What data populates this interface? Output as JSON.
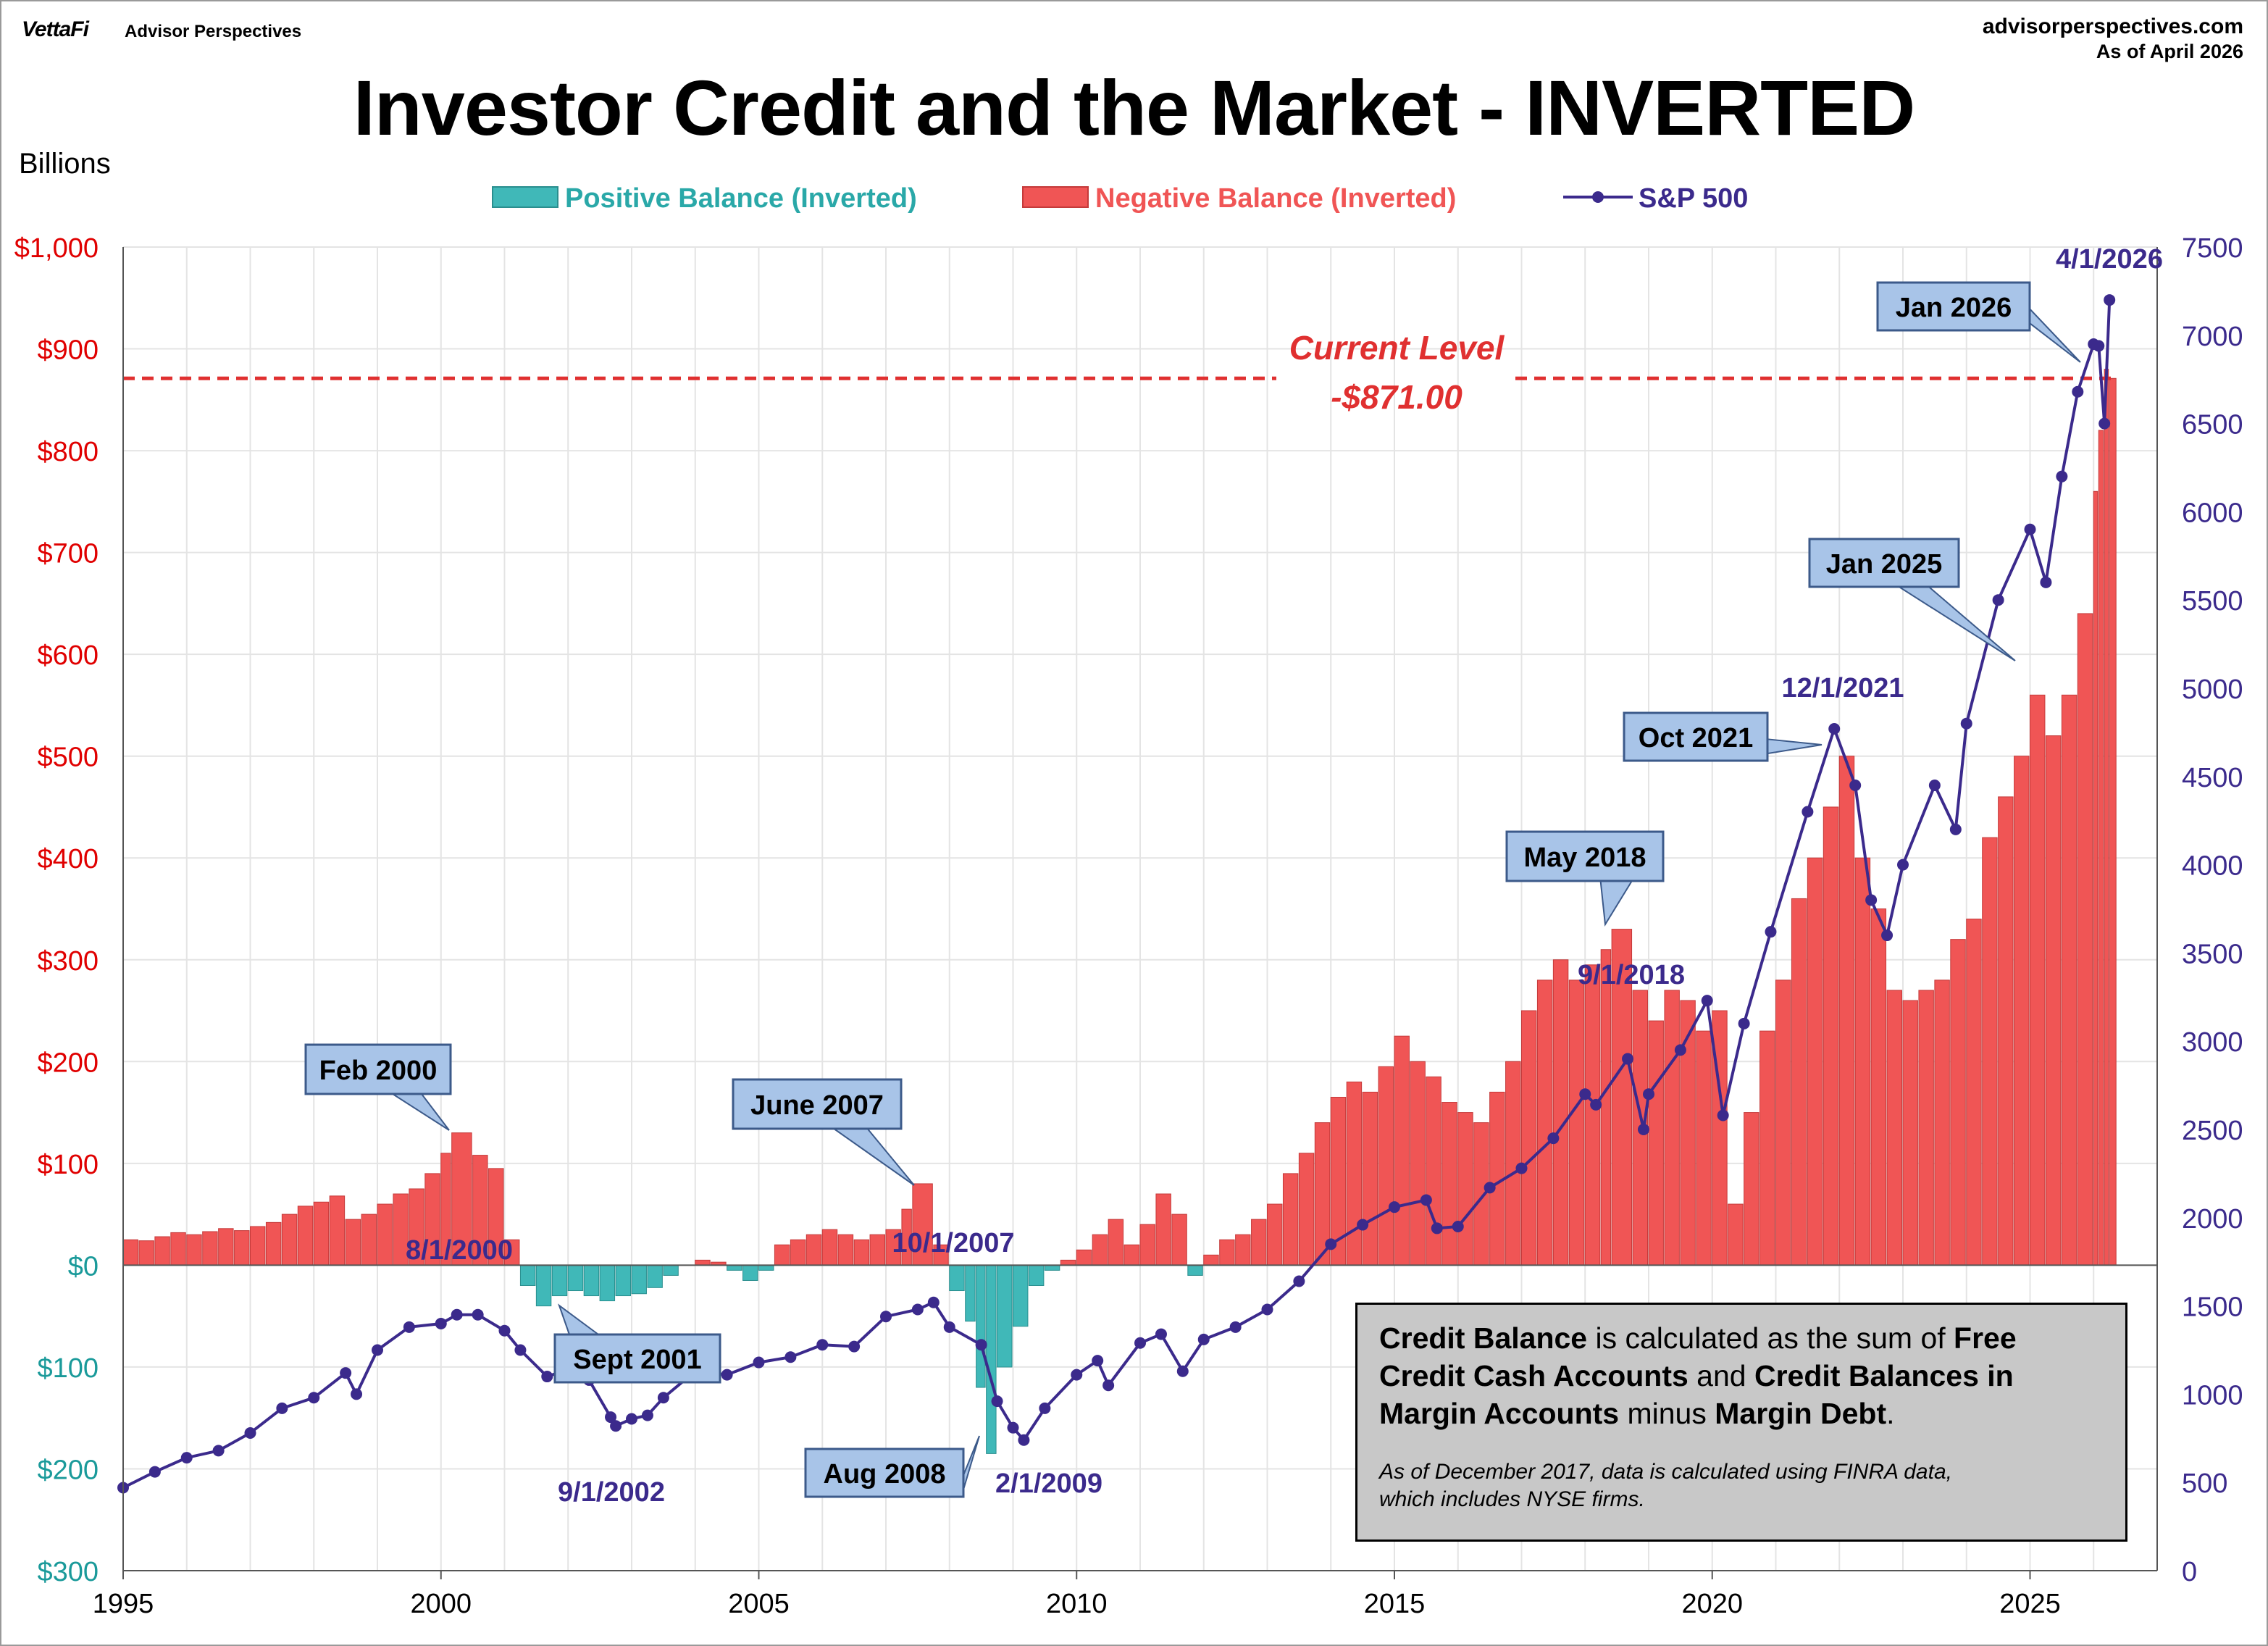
{
  "header": {
    "brand": "VettaFi",
    "brand_sub": "Advisor Perspectives",
    "site": "advisorperspectives.com",
    "as_of": "As of April 2026"
  },
  "colors": {
    "positive": "#40b8b8",
    "negative": "#f05555",
    "sp500": "#3b2a8c",
    "left_axis": "#e00000",
    "left_axis_zero_below": "#1a9a9a",
    "grid": "#e4e4e4",
    "current_level": "#e03030",
    "callout_fill": "#a8c4e8",
    "callout_border": "#3c5a8a"
  },
  "note": {
    "parts": [
      {
        "text": "Credit Balance",
        "bold": true
      },
      {
        "text": " is calculated as the sum of ",
        "bold": false
      },
      {
        "text": "Free Credit Cash Accounts",
        "bold": true
      },
      {
        "text": " and ",
        "bold": false
      },
      {
        "text": "Credit Balances in Margin Accounts",
        "bold": true
      },
      {
        "text": " minus ",
        "bold": false
      },
      {
        "text": "Margin Debt",
        "bold": true
      },
      {
        "text": ".",
        "bold": false
      }
    ],
    "footnote": "As of December 2017, data is calculated using FINRA data,\n which includes NYSE firms."
  },
  "chart_data": {
    "type": "bar+line",
    "title": "Investor Credit and the Market - INVERTED",
    "left_axis": {
      "label": "Billions",
      "range": [
        -300,
        1000
      ],
      "ticks": [
        1000,
        900,
        800,
        700,
        600,
        500,
        400,
        300,
        200,
        100,
        0,
        -100,
        -200,
        -300
      ],
      "tick_labels": [
        "$1,000",
        "$900",
        "$800",
        "$700",
        "$600",
        "$500",
        "$400",
        "$300",
        "$200",
        "$100",
        "$0",
        "$100",
        "$200",
        "$300"
      ]
    },
    "right_axis": {
      "range": [
        0,
        7500
      ],
      "ticks": [
        7500,
        7000,
        6500,
        6000,
        5500,
        5000,
        4500,
        4000,
        3500,
        3000,
        2500,
        2000,
        1500,
        1000,
        500,
        0
      ],
      "tick_labels": [
        "7500",
        "7000",
        "6500",
        "6000",
        "5500",
        "5000",
        "4500",
        "4000",
        "3500",
        "3000",
        "2500",
        "2000",
        "1500",
        "1000",
        "500",
        "0"
      ]
    },
    "x_axis": {
      "range": [
        1995,
        2027
      ],
      "ticks": [
        1995,
        2000,
        2005,
        2010,
        2015,
        2020,
        2025
      ],
      "tick_labels": [
        "1995",
        "2000",
        "2005",
        "2010",
        "2015",
        "2020",
        "2025"
      ]
    },
    "grid": true,
    "legend": {
      "placement": "top",
      "entries": [
        "Positive Balance (Inverted)",
        "Negative Balance (Inverted)",
        "S&P 500"
      ]
    },
    "series": [
      {
        "name": "Credit Balance (Inverted)",
        "axis": "left",
        "x": [
          1995.0,
          1995.25,
          1995.5,
          1995.75,
          1996.0,
          1996.25,
          1996.5,
          1996.75,
          1997.0,
          1997.25,
          1997.5,
          1997.75,
          1998.0,
          1998.25,
          1998.5,
          1998.75,
          1999.0,
          1999.25,
          1999.5,
          1999.75,
          2000.0,
          2000.17,
          2000.5,
          2000.75,
          2001.0,
          2001.25,
          2001.5,
          2001.75,
          2002.0,
          2002.25,
          2002.5,
          2002.75,
          2003.0,
          2003.25,
          2003.5,
          2003.75,
          2004.0,
          2004.25,
          2004.5,
          2004.75,
          2005.0,
          2005.25,
          2005.5,
          2005.75,
          2006.0,
          2006.25,
          2006.5,
          2006.75,
          2007.0,
          2007.25,
          2007.42,
          2007.75,
          2008.0,
          2008.25,
          2008.42,
          2008.58,
          2008.75,
          2009.0,
          2009.25,
          2009.5,
          2009.75,
          2010.0,
          2010.25,
          2010.5,
          2010.75,
          2011.0,
          2011.25,
          2011.5,
          2011.75,
          2012.0,
          2012.25,
          2012.5,
          2012.75,
          2013.0,
          2013.25,
          2013.5,
          2013.75,
          2014.0,
          2014.25,
          2014.5,
          2014.75,
          2015.0,
          2015.25,
          2015.5,
          2015.75,
          2016.0,
          2016.25,
          2016.5,
          2016.75,
          2017.0,
          2017.25,
          2017.5,
          2017.75,
          2018.0,
          2018.25,
          2018.42,
          2018.75,
          2019.0,
          2019.25,
          2019.5,
          2019.75,
          2020.0,
          2020.25,
          2020.5,
          2020.75,
          2021.0,
          2021.25,
          2021.5,
          2021.75,
          2022.0,
          2022.25,
          2022.5,
          2022.75,
          2023.0,
          2023.25,
          2023.5,
          2023.75,
          2024.0,
          2024.25,
          2024.5,
          2024.75,
          2025.0,
          2025.25,
          2025.5,
          2025.75,
          2026.0,
          2026.08,
          2026.17,
          2026.25
        ],
        "values": [
          25,
          24,
          28,
          32,
          30,
          33,
          36,
          34,
          38,
          42,
          50,
          58,
          62,
          68,
          45,
          50,
          60,
          70,
          75,
          90,
          110,
          130,
          108,
          95,
          25,
          -20,
          -40,
          -30,
          -25,
          -30,
          -35,
          -30,
          -28,
          -22,
          -10,
          0,
          5,
          3,
          -5,
          -15,
          -5,
          20,
          25,
          30,
          35,
          30,
          25,
          30,
          35,
          55,
          80,
          20,
          -25,
          -55,
          -120,
          -185,
          -100,
          -60,
          -20,
          -5,
          5,
          15,
          30,
          45,
          20,
          40,
          70,
          50,
          -10,
          10,
          25,
          30,
          45,
          60,
          90,
          110,
          140,
          165,
          180,
          170,
          195,
          225,
          200,
          185,
          160,
          150,
          140,
          170,
          200,
          250,
          280,
          300,
          280,
          295,
          310,
          330,
          270,
          240,
          270,
          260,
          230,
          250,
          60,
          150,
          230,
          280,
          360,
          400,
          450,
          500,
          400,
          350,
          270,
          260,
          270,
          280,
          320,
          340,
          420,
          460,
          500,
          560,
          520,
          560,
          640,
          760,
          820,
          880,
          871
        ]
      },
      {
        "name": "S&P 500",
        "axis": "right",
        "x": [
          1995.0,
          1995.5,
          1996.0,
          1996.5,
          1997.0,
          1997.5,
          1998.0,
          1998.5,
          1998.67,
          1999.0,
          1999.5,
          2000.0,
          2000.25,
          2000.58,
          2001.0,
          2001.25,
          2001.67,
          2002.0,
          2002.33,
          2002.67,
          2002.75,
          2003.0,
          2003.25,
          2003.5,
          2004.0,
          2004.5,
          2005.0,
          2005.5,
          2006.0,
          2006.5,
          2007.0,
          2007.5,
          2007.75,
          2008.0,
          2008.5,
          2008.75,
          2009.0,
          2009.17,
          2009.5,
          2010.0,
          2010.33,
          2010.5,
          2011.0,
          2011.33,
          2011.67,
          2012.0,
          2012.5,
          2013.0,
          2013.5,
          2014.0,
          2014.5,
          2015.0,
          2015.5,
          2015.67,
          2016.0,
          2016.5,
          2017.0,
          2017.5,
          2018.0,
          2018.17,
          2018.67,
          2018.92,
          2019.0,
          2019.5,
          2019.92,
          2020.17,
          2020.5,
          2020.92,
          2021.5,
          2021.92,
          2022.25,
          2022.5,
          2022.75,
          2023.0,
          2023.5,
          2023.83,
          2024.0,
          2024.5,
          2025.0,
          2025.25,
          2025.5,
          2025.75,
          2026.0,
          2026.08,
          2026.17,
          2026.25
        ],
        "values": [
          470,
          560,
          640,
          680,
          780,
          920,
          980,
          1120,
          1000,
          1250,
          1380,
          1400,
          1450,
          1450,
          1360,
          1250,
          1100,
          1140,
          1080,
          870,
          820,
          860,
          880,
          980,
          1130,
          1110,
          1180,
          1210,
          1280,
          1270,
          1440,
          1480,
          1520,
          1380,
          1280,
          960,
          810,
          740,
          920,
          1110,
          1190,
          1050,
          1290,
          1340,
          1130,
          1310,
          1380,
          1480,
          1640,
          1850,
          1960,
          2060,
          2100,
          1940,
          1950,
          2170,
          2280,
          2450,
          2700,
          2640,
          2900,
          2500,
          2700,
          2950,
          3230,
          2580,
          3100,
          3620,
          4300,
          4770,
          4450,
          3800,
          3600,
          4000,
          4450,
          4200,
          4800,
          5500,
          5900,
          5600,
          6200,
          6680,
          6950,
          6940,
          6500,
          7200
        ]
      }
    ],
    "annotations": [
      {
        "text": "Current Level",
        "kind": "label"
      },
      {
        "text": "-$871.00",
        "kind": "label"
      },
      {
        "text": "Feb 2000",
        "kind": "callout"
      },
      {
        "text": "June 2007",
        "kind": "callout"
      },
      {
        "text": "May 2018",
        "kind": "callout"
      },
      {
        "text": "Oct 2021",
        "kind": "callout"
      },
      {
        "text": "Jan 2025",
        "kind": "callout"
      },
      {
        "text": "Jan 2026",
        "kind": "callout"
      },
      {
        "text": "Sept 2001",
        "kind": "callout"
      },
      {
        "text": "Aug 2008",
        "kind": "callout"
      },
      {
        "text": "8/1/2000",
        "kind": "date"
      },
      {
        "text": "10/1/2007",
        "kind": "date"
      },
      {
        "text": "9/1/2018",
        "kind": "date"
      },
      {
        "text": "12/1/2021",
        "kind": "date"
      },
      {
        "text": "4/1/2026",
        "kind": "date"
      },
      {
        "text": "9/1/2002",
        "kind": "date"
      },
      {
        "text": "2/1/2009",
        "kind": "date"
      }
    ],
    "current_level": 871
  }
}
